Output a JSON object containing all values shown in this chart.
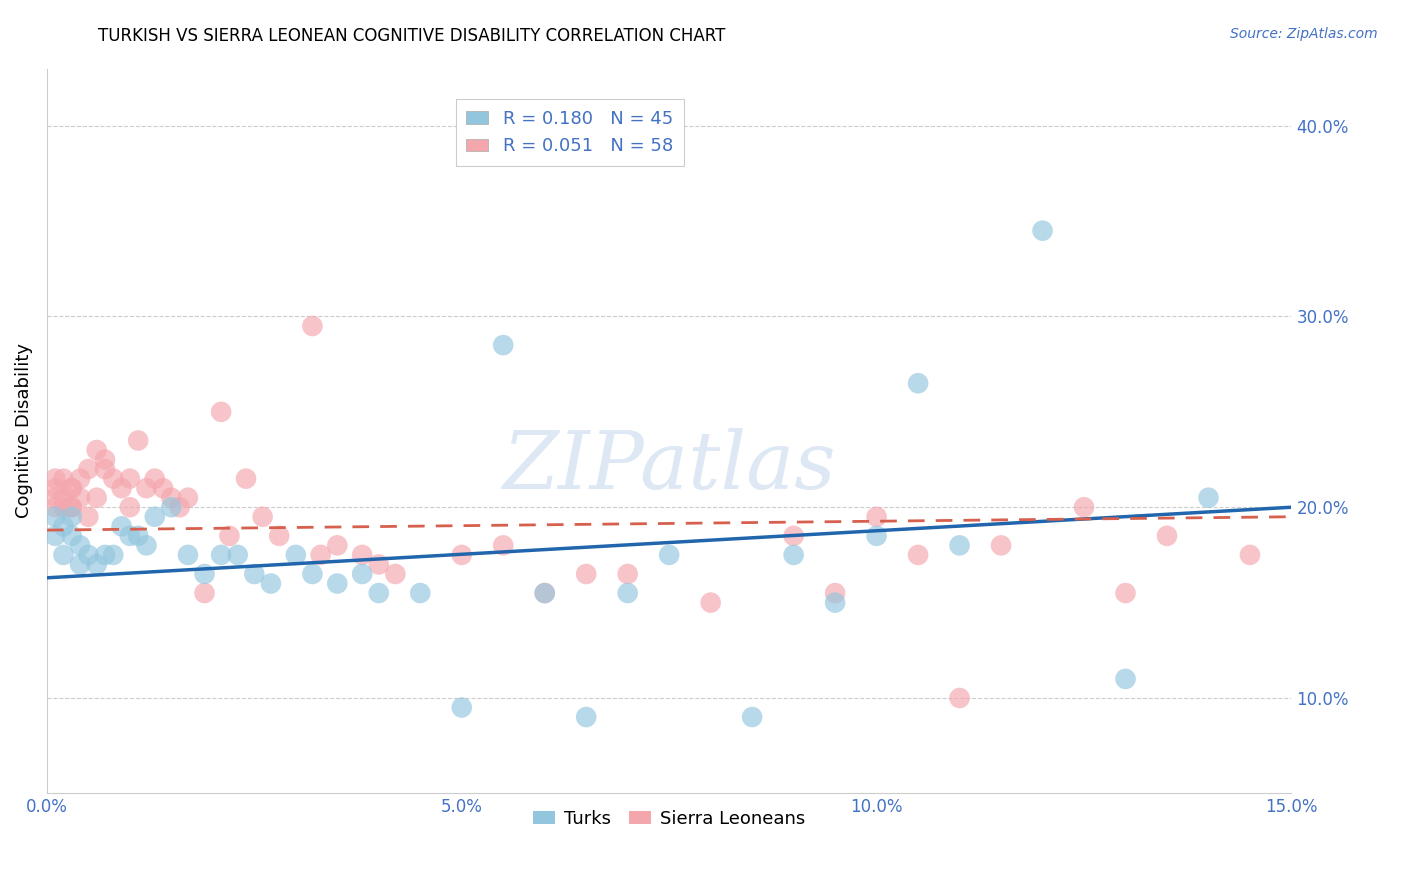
{
  "title": "TURKISH VS SIERRA LEONEAN COGNITIVE DISABILITY CORRELATION CHART",
  "source": "Source: ZipAtlas.com",
  "ylabel_label": "Cognitive Disability",
  "xlim": [
    0.0,
    0.15
  ],
  "ylim": [
    0.05,
    0.43
  ],
  "xticks": [
    0.0,
    0.05,
    0.1,
    0.15
  ],
  "xtick_labels": [
    "0.0%",
    "5.0%",
    "10.0%",
    "15.0%"
  ],
  "yticks_right": [
    0.1,
    0.2,
    0.3,
    0.4
  ],
  "ytick_labels_right": [
    "10.0%",
    "20.0%",
    "30.0%",
    "40.0%"
  ],
  "turks_R": 0.18,
  "turks_N": 45,
  "sierra_R": 0.051,
  "sierra_N": 58,
  "turks_color": "#92c5de",
  "sierra_color": "#f4a6ad",
  "turks_color_line": "#2166ac",
  "sierra_color_line": "#d6604d",
  "watermark_text": "ZIPatlas",
  "legend_color": "#4472c4",
  "tick_color": "#4472c4",
  "turks_x": [
    0.001,
    0.001,
    0.002,
    0.002,
    0.003,
    0.003,
    0.004,
    0.004,
    0.005,
    0.006,
    0.007,
    0.008,
    0.009,
    0.01,
    0.011,
    0.012,
    0.013,
    0.015,
    0.017,
    0.019,
    0.021,
    0.023,
    0.025,
    0.027,
    0.03,
    0.032,
    0.035,
    0.038,
    0.04,
    0.045,
    0.05,
    0.055,
    0.06,
    0.065,
    0.07,
    0.075,
    0.085,
    0.09,
    0.095,
    0.1,
    0.105,
    0.11,
    0.12,
    0.13,
    0.14
  ],
  "turks_y": [
    0.195,
    0.185,
    0.19,
    0.175,
    0.195,
    0.185,
    0.18,
    0.17,
    0.175,
    0.17,
    0.175,
    0.175,
    0.19,
    0.185,
    0.185,
    0.18,
    0.195,
    0.2,
    0.175,
    0.165,
    0.175,
    0.175,
    0.165,
    0.16,
    0.175,
    0.165,
    0.16,
    0.165,
    0.155,
    0.155,
    0.095,
    0.285,
    0.155,
    0.09,
    0.155,
    0.175,
    0.09,
    0.175,
    0.15,
    0.185,
    0.265,
    0.18,
    0.345,
    0.11,
    0.205
  ],
  "sierra_x": [
    0.001,
    0.001,
    0.001,
    0.001,
    0.002,
    0.002,
    0.002,
    0.003,
    0.003,
    0.003,
    0.003,
    0.004,
    0.004,
    0.005,
    0.005,
    0.006,
    0.006,
    0.007,
    0.007,
    0.008,
    0.009,
    0.01,
    0.01,
    0.011,
    0.012,
    0.013,
    0.014,
    0.015,
    0.016,
    0.017,
    0.019,
    0.021,
    0.022,
    0.024,
    0.026,
    0.028,
    0.032,
    0.033,
    0.035,
    0.038,
    0.04,
    0.042,
    0.05,
    0.055,
    0.06,
    0.065,
    0.07,
    0.08,
    0.09,
    0.095,
    0.1,
    0.105,
    0.11,
    0.115,
    0.125,
    0.13,
    0.135,
    0.145
  ],
  "sierra_y": [
    0.215,
    0.21,
    0.205,
    0.2,
    0.215,
    0.205,
    0.2,
    0.21,
    0.2,
    0.21,
    0.2,
    0.215,
    0.205,
    0.22,
    0.195,
    0.205,
    0.23,
    0.225,
    0.22,
    0.215,
    0.21,
    0.215,
    0.2,
    0.235,
    0.21,
    0.215,
    0.21,
    0.205,
    0.2,
    0.205,
    0.155,
    0.25,
    0.185,
    0.215,
    0.195,
    0.185,
    0.295,
    0.175,
    0.18,
    0.175,
    0.17,
    0.165,
    0.175,
    0.18,
    0.155,
    0.165,
    0.165,
    0.15,
    0.185,
    0.155,
    0.195,
    0.175,
    0.1,
    0.18,
    0.2,
    0.155,
    0.185,
    0.175
  ]
}
